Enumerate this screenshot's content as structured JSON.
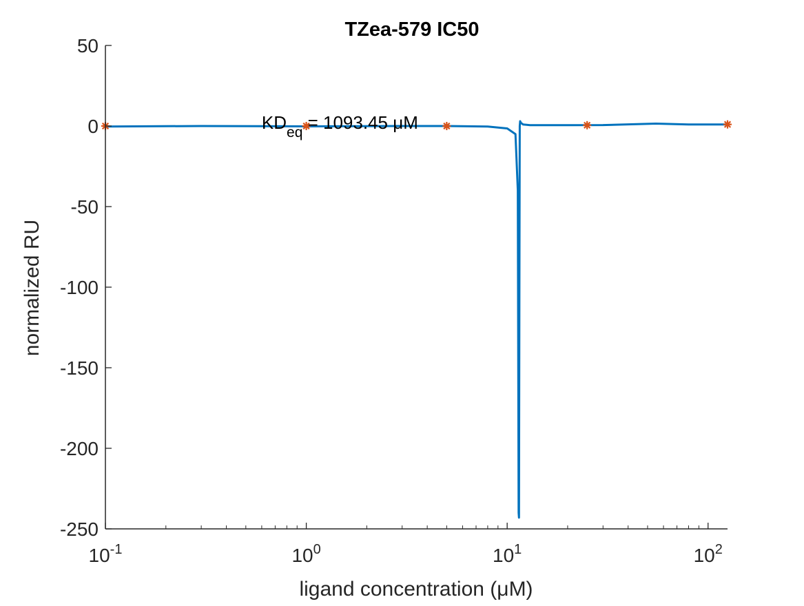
{
  "chart_data": {
    "type": "scatter",
    "title": "TZea-579 IC50",
    "xlabel": "ligand concentration (μM)",
    "ylabel": "normalized RU",
    "x_scale": "log",
    "xlim": [
      0.1,
      125
    ],
    "ylim": [
      -250,
      50
    ],
    "x_ticks": [
      0.1,
      1,
      10,
      100
    ],
    "x_tick_labels": [
      "10-1",
      "100",
      "101",
      "102"
    ],
    "y_ticks": [
      50,
      0,
      -50,
      -100,
      -150,
      -200,
      -250
    ],
    "y_tick_labels": [
      "50",
      "0",
      "-50",
      "-100",
      "-150",
      "-200",
      "-250"
    ],
    "grid": false,
    "annotation": {
      "text": "KDeq = 1093.45 μM",
      "x": 0.6,
      "y": 0
    },
    "series": [
      {
        "kind": "points",
        "x": [
          0.1,
          1,
          5,
          25,
          125
        ],
        "y": [
          0,
          0,
          0,
          0.5,
          1
        ],
        "color": "#d95319",
        "marker": "asterisk"
      },
      {
        "kind": "fit-line",
        "x": [
          0.1,
          0.3,
          1,
          3,
          5,
          8,
          10,
          11,
          11.3,
          11.4,
          11.45,
          11.5,
          11.55,
          11.6,
          11.7,
          12,
          13,
          20,
          30,
          55,
          80,
          125
        ],
        "y": [
          -0.3,
          0,
          -0.2,
          0,
          0,
          -0.3,
          -1.5,
          -5,
          -40,
          -240,
          -243,
          -100,
          0,
          3,
          2,
          1,
          0.5,
          0.5,
          0.6,
          1.5,
          1,
          1
        ],
        "color": "#0072bd"
      }
    ]
  }
}
